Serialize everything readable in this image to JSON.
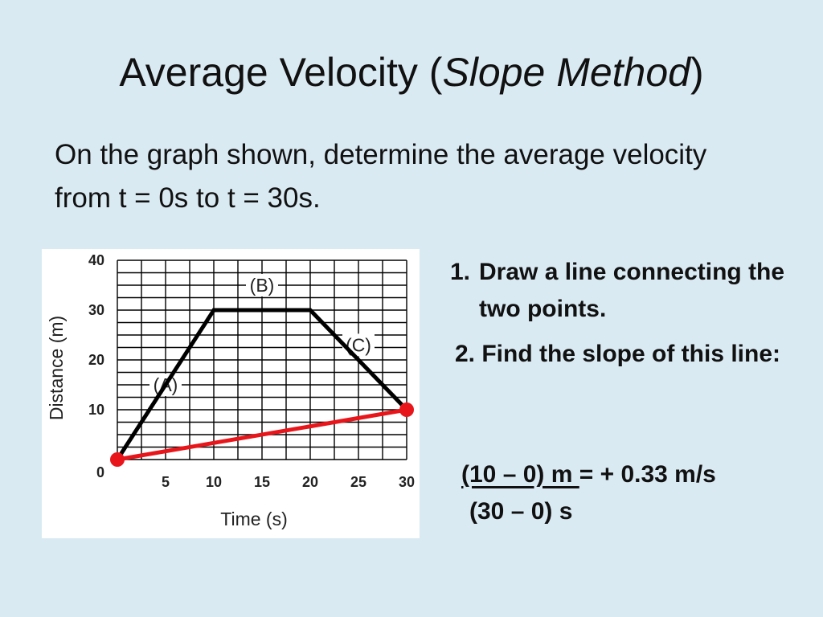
{
  "title": {
    "main": "Average Velocity (",
    "italic": "Slope Method",
    "close": ")"
  },
  "prompt": "On the graph shown, determine the average velocity from t = 0s to t = 30s.",
  "steps": {
    "step1_number": "1.",
    "step1_text": "Draw a line connecting the two points.",
    "step2_text": "2.   Find the slope of this line:"
  },
  "calculation": {
    "numerator": "(10 – 0) m ",
    "result": "= + 0.33 m/s",
    "denominator": "(30 – 0) s"
  },
  "colors": {
    "background": "#daeaf3",
    "slope_line": "#e8161b",
    "graph_line": "#000000"
  },
  "chart_data": {
    "type": "line",
    "xlabel": "Time (s)",
    "ylabel": "Distance (m)",
    "xlim": [
      0,
      30
    ],
    "ylim": [
      0,
      40
    ],
    "x_ticks": [
      5,
      10,
      15,
      20,
      25,
      30
    ],
    "y_ticks": [
      10,
      20,
      30,
      40
    ],
    "origin_label": "0",
    "grid": true,
    "grid_step_x": 2.5,
    "grid_step_y": 5,
    "series": [
      {
        "x": [
          0,
          10,
          20,
          30
        ],
        "y": [
          0,
          30,
          30,
          10
        ],
        "color": "#000000"
      },
      {
        "x": [
          0,
          30
        ],
        "y": [
          0,
          10
        ],
        "color": "#e8161b",
        "markers": true
      }
    ],
    "annotations": [
      {
        "text": "(A)",
        "x": 5,
        "y": 15
      },
      {
        "text": "(B)",
        "x": 15,
        "y": 35
      },
      {
        "text": "(C)",
        "x": 25,
        "y": 23
      }
    ]
  }
}
